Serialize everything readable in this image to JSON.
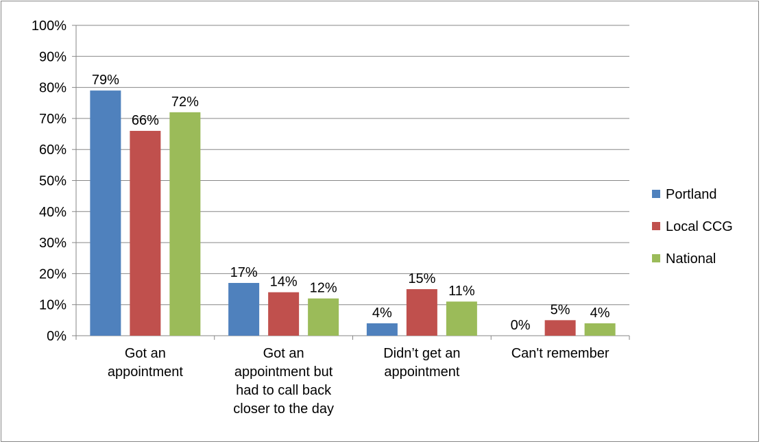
{
  "chart_data": {
    "type": "bar",
    "categories": [
      [
        "Got an",
        "appointment"
      ],
      [
        "Got an",
        "appointment but",
        "had to call back",
        "closer to the day"
      ],
      [
        "Didn’t get an",
        "appointment"
      ],
      [
        "Can't remember"
      ]
    ],
    "series": [
      {
        "name": "Portland",
        "color": "#4F81BD",
        "values": [
          79,
          17,
          4,
          0
        ]
      },
      {
        "name": "Local CCG",
        "color": "#C0504D",
        "values": [
          66,
          14,
          15,
          5
        ]
      },
      {
        "name": "National",
        "color": "#9BBB59",
        "values": [
          72,
          12,
          11,
          4
        ]
      }
    ],
    "value_suffix": "%",
    "ylim": [
      0,
      100
    ],
    "ytick_step": 10,
    "yticks": [
      "0%",
      "10%",
      "20%",
      "30%",
      "40%",
      "50%",
      "60%",
      "70%",
      "80%",
      "90%",
      "100%"
    ],
    "grid": true,
    "legend_position": "right",
    "gridline_color": "#868686",
    "title": "",
    "xlabel": "",
    "ylabel": ""
  }
}
